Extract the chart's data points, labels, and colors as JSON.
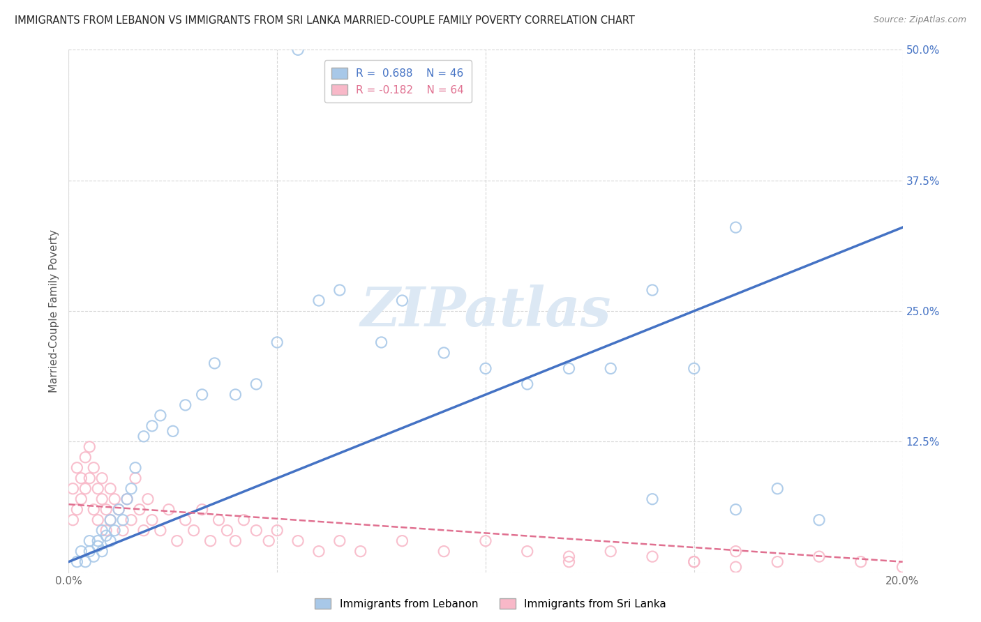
{
  "title": "IMMIGRANTS FROM LEBANON VS IMMIGRANTS FROM SRI LANKA MARRIED-COUPLE FAMILY POVERTY CORRELATION CHART",
  "source": "Source: ZipAtlas.com",
  "ylabel": "Married-Couple Family Poverty",
  "xlim": [
    0.0,
    0.2
  ],
  "ylim": [
    0.0,
    0.5
  ],
  "xticks": [
    0.0,
    0.05,
    0.1,
    0.15,
    0.2
  ],
  "xticklabels": [
    "0.0%",
    "",
    "",
    "",
    "20.0%"
  ],
  "yticks": [
    0.0,
    0.125,
    0.25,
    0.375,
    0.5
  ],
  "yticklabels": [
    "",
    "12.5%",
    "25.0%",
    "37.5%",
    "50.0%"
  ],
  "lebanon_R": 0.688,
  "lebanon_N": 46,
  "srilanka_R": -0.182,
  "srilanka_N": 64,
  "lebanon_color": "#a8c8e8",
  "srilanka_color": "#f8b8c8",
  "lebanon_line_color": "#4472c4",
  "srilanka_line_color": "#e07090",
  "watermark": "ZIPatlas",
  "watermark_color": "#dce8f4",
  "legend_label_lebanon": "Immigrants from Lebanon",
  "legend_label_srilanka": "Immigrants from Sri Lanka",
  "lebanon_scatter_x": [
    0.002,
    0.003,
    0.004,
    0.005,
    0.005,
    0.006,
    0.007,
    0.007,
    0.008,
    0.008,
    0.009,
    0.01,
    0.01,
    0.011,
    0.012,
    0.013,
    0.014,
    0.015,
    0.016,
    0.018,
    0.02,
    0.022,
    0.025,
    0.028,
    0.032,
    0.035,
    0.04,
    0.045,
    0.05,
    0.055,
    0.06,
    0.065,
    0.075,
    0.08,
    0.09,
    0.1,
    0.11,
    0.12,
    0.13,
    0.14,
    0.15,
    0.16,
    0.17,
    0.18,
    0.16,
    0.14
  ],
  "lebanon_scatter_y": [
    0.01,
    0.02,
    0.01,
    0.03,
    0.02,
    0.015,
    0.025,
    0.03,
    0.04,
    0.02,
    0.035,
    0.03,
    0.05,
    0.04,
    0.06,
    0.05,
    0.07,
    0.08,
    0.1,
    0.13,
    0.14,
    0.15,
    0.135,
    0.16,
    0.17,
    0.2,
    0.17,
    0.18,
    0.22,
    0.5,
    0.26,
    0.27,
    0.22,
    0.26,
    0.21,
    0.195,
    0.18,
    0.195,
    0.195,
    0.27,
    0.195,
    0.33,
    0.08,
    0.05,
    0.06,
    0.07
  ],
  "srilanka_scatter_x": [
    0.001,
    0.001,
    0.002,
    0.002,
    0.003,
    0.003,
    0.004,
    0.004,
    0.005,
    0.005,
    0.006,
    0.006,
    0.007,
    0.007,
    0.008,
    0.008,
    0.009,
    0.009,
    0.01,
    0.01,
    0.011,
    0.012,
    0.013,
    0.014,
    0.015,
    0.016,
    0.017,
    0.018,
    0.019,
    0.02,
    0.022,
    0.024,
    0.026,
    0.028,
    0.03,
    0.032,
    0.034,
    0.036,
    0.038,
    0.04,
    0.042,
    0.045,
    0.048,
    0.05,
    0.055,
    0.06,
    0.065,
    0.07,
    0.08,
    0.09,
    0.1,
    0.11,
    0.12,
    0.13,
    0.14,
    0.15,
    0.16,
    0.17,
    0.18,
    0.19,
    0.2,
    0.15,
    0.16,
    0.12
  ],
  "srilanka_scatter_y": [
    0.05,
    0.08,
    0.06,
    0.1,
    0.07,
    0.09,
    0.08,
    0.11,
    0.09,
    0.12,
    0.1,
    0.06,
    0.08,
    0.05,
    0.07,
    0.09,
    0.06,
    0.04,
    0.08,
    0.05,
    0.07,
    0.06,
    0.04,
    0.07,
    0.05,
    0.09,
    0.06,
    0.04,
    0.07,
    0.05,
    0.04,
    0.06,
    0.03,
    0.05,
    0.04,
    0.06,
    0.03,
    0.05,
    0.04,
    0.03,
    0.05,
    0.04,
    0.03,
    0.04,
    0.03,
    0.02,
    0.03,
    0.02,
    0.03,
    0.02,
    0.03,
    0.02,
    0.015,
    0.02,
    0.015,
    0.01,
    0.02,
    0.01,
    0.015,
    0.01,
    0.005,
    0.01,
    0.005,
    0.01
  ]
}
